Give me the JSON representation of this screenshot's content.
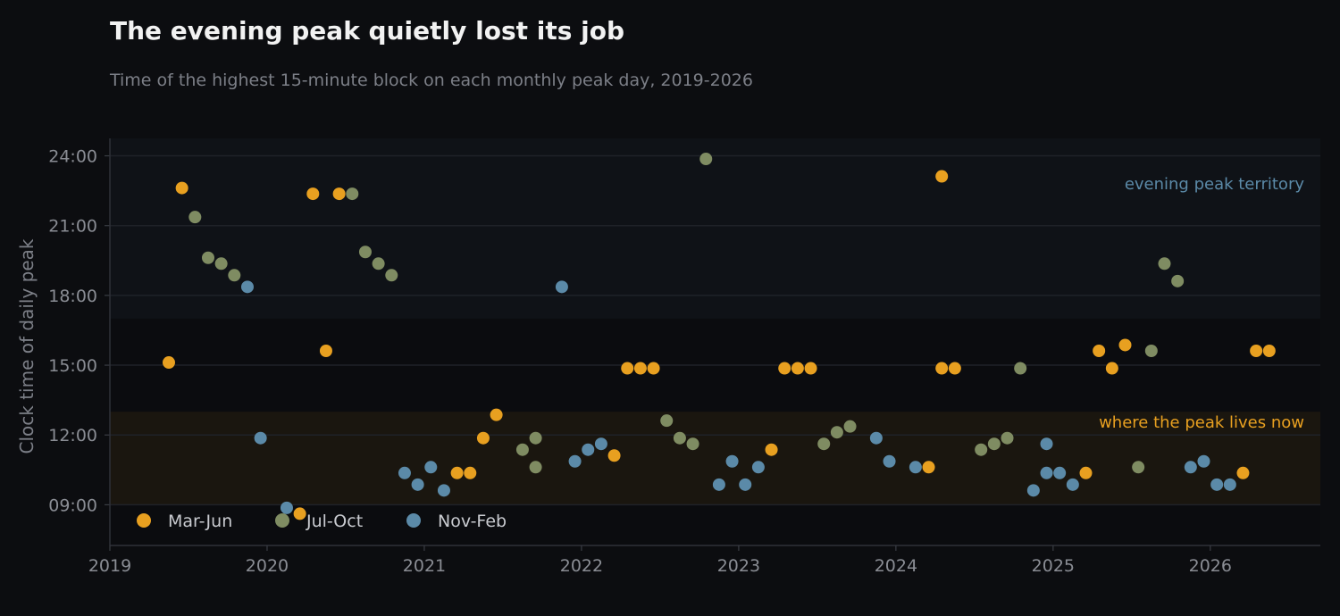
{
  "chart_data": {
    "type": "scatter",
    "title": "The evening peak quietly lost its job",
    "subtitle": "Time of the highest 15-minute block on each monthly peak day, 2019-2026",
    "ylabel": "Clock time of daily peak",
    "xlabel": "",
    "xlim": [
      2019.0,
      2026.7
    ],
    "ylim": [
      "07:15",
      "24:45"
    ],
    "x_ticks": [
      "2019",
      "2020",
      "2021",
      "2022",
      "2023",
      "2024",
      "2025",
      "2026"
    ],
    "y_ticks": [
      "09:00",
      "12:00",
      "15:00",
      "18:00",
      "21:00",
      "24:00"
    ],
    "grid": "horizontal",
    "legend_position": "bottom-left",
    "colors": {
      "Mar-Jun": "#e8a020",
      "Jul-Oct": "#7f8c62",
      "Nov-Feb": "#5b8aa8"
    },
    "bands": [
      {
        "label": "evening peak territory",
        "from": "17:00",
        "to": "24:45",
        "color": "#5b8aa8"
      },
      {
        "label": "where the peak lives now",
        "from": "09:00",
        "to": "13:00",
        "color": "#e8a020"
      }
    ],
    "series": [
      {
        "name": "Mar-Jun",
        "points": [
          {
            "x": "2019-05",
            "y": "15:07"
          },
          {
            "x": "2019-06",
            "y": "22:37"
          },
          {
            "x": "2020-03",
            "y": "08:37"
          },
          {
            "x": "2020-04",
            "y": "22:22"
          },
          {
            "x": "2020-05",
            "y": "15:37"
          },
          {
            "x": "2020-06",
            "y": "22:22"
          },
          {
            "x": "2021-03",
            "y": "10:22"
          },
          {
            "x": "2021-04",
            "y": "10:22"
          },
          {
            "x": "2021-05",
            "y": "11:52"
          },
          {
            "x": "2021-06",
            "y": "12:52"
          },
          {
            "x": "2022-03",
            "y": "11:07"
          },
          {
            "x": "2022-04",
            "y": "14:52"
          },
          {
            "x": "2022-05",
            "y": "14:52"
          },
          {
            "x": "2022-06",
            "y": "14:52"
          },
          {
            "x": "2023-03",
            "y": "11:22"
          },
          {
            "x": "2023-04",
            "y": "14:52"
          },
          {
            "x": "2023-05",
            "y": "14:52"
          },
          {
            "x": "2023-06",
            "y": "14:52"
          },
          {
            "x": "2024-03",
            "y": "10:37"
          },
          {
            "x": "2024-04",
            "y": "23:07"
          },
          {
            "x": "2024-04",
            "y": "14:52"
          },
          {
            "x": "2024-05",
            "y": "14:52"
          },
          {
            "x": "2025-03",
            "y": "10:22"
          },
          {
            "x": "2025-04",
            "y": "15:37"
          },
          {
            "x": "2025-05",
            "y": "14:52"
          },
          {
            "x": "2025-06",
            "y": "15:52"
          },
          {
            "x": "2026-03",
            "y": "10:22"
          },
          {
            "x": "2026-04",
            "y": "15:37"
          },
          {
            "x": "2026-05",
            "y": "15:37"
          }
        ]
      },
      {
        "name": "Jul-Oct",
        "points": [
          {
            "x": "2019-07",
            "y": "21:22"
          },
          {
            "x": "2019-08",
            "y": "19:37"
          },
          {
            "x": "2019-09",
            "y": "19:22"
          },
          {
            "x": "2019-10",
            "y": "18:52"
          },
          {
            "x": "2020-07",
            "y": "22:22"
          },
          {
            "x": "2020-08",
            "y": "19:52"
          },
          {
            "x": "2020-09",
            "y": "19:22"
          },
          {
            "x": "2020-10",
            "y": "18:52"
          },
          {
            "x": "2021-08",
            "y": "11:22"
          },
          {
            "x": "2021-09",
            "y": "11:52"
          },
          {
            "x": "2021-09",
            "y": "10:37"
          },
          {
            "x": "2022-07",
            "y": "12:37"
          },
          {
            "x": "2022-08",
            "y": "11:52"
          },
          {
            "x": "2022-09",
            "y": "11:37"
          },
          {
            "x": "2022-10",
            "y": "23:52"
          },
          {
            "x": "2023-07",
            "y": "11:37"
          },
          {
            "x": "2023-08",
            "y": "12:07"
          },
          {
            "x": "2023-09",
            "y": "12:22"
          },
          {
            "x": "2024-07",
            "y": "11:22"
          },
          {
            "x": "2024-08",
            "y": "11:37"
          },
          {
            "x": "2024-09",
            "y": "11:52"
          },
          {
            "x": "2024-10",
            "y": "14:52"
          },
          {
            "x": "2025-07",
            "y": "10:37"
          },
          {
            "x": "2025-08",
            "y": "15:37"
          },
          {
            "x": "2025-09",
            "y": "19:22"
          },
          {
            "x": "2025-10",
            "y": "18:37"
          }
        ]
      },
      {
        "name": "Nov-Feb",
        "points": [
          {
            "x": "2019-11",
            "y": "18:22"
          },
          {
            "x": "2019-12",
            "y": "11:52"
          },
          {
            "x": "2020-02",
            "y": "08:52"
          },
          {
            "x": "2020-11",
            "y": "10:22"
          },
          {
            "x": "2020-12",
            "y": "09:52"
          },
          {
            "x": "2021-01",
            "y": "10:37"
          },
          {
            "x": "2021-02",
            "y": "09:37"
          },
          {
            "x": "2021-11",
            "y": "18:22"
          },
          {
            "x": "2021-12",
            "y": "10:52"
          },
          {
            "x": "2022-01",
            "y": "11:22"
          },
          {
            "x": "2022-02",
            "y": "11:37"
          },
          {
            "x": "2022-11",
            "y": "09:52"
          },
          {
            "x": "2022-12",
            "y": "10:52"
          },
          {
            "x": "2023-01",
            "y": "09:52"
          },
          {
            "x": "2023-02",
            "y": "10:37"
          },
          {
            "x": "2023-11",
            "y": "11:52"
          },
          {
            "x": "2023-12",
            "y": "10:52"
          },
          {
            "x": "2024-02",
            "y": "10:37"
          },
          {
            "x": "2024-11",
            "y": "09:37"
          },
          {
            "x": "2024-12",
            "y": "11:37"
          },
          {
            "x": "2024-12",
            "y": "10:22"
          },
          {
            "x": "2025-01",
            "y": "10:22"
          },
          {
            "x": "2025-02",
            "y": "09:52"
          },
          {
            "x": "2025-11",
            "y": "10:37"
          },
          {
            "x": "2025-12",
            "y": "10:52"
          },
          {
            "x": "2026-01",
            "y": "09:52"
          },
          {
            "x": "2026-02",
            "y": "09:52"
          }
        ]
      }
    ]
  }
}
